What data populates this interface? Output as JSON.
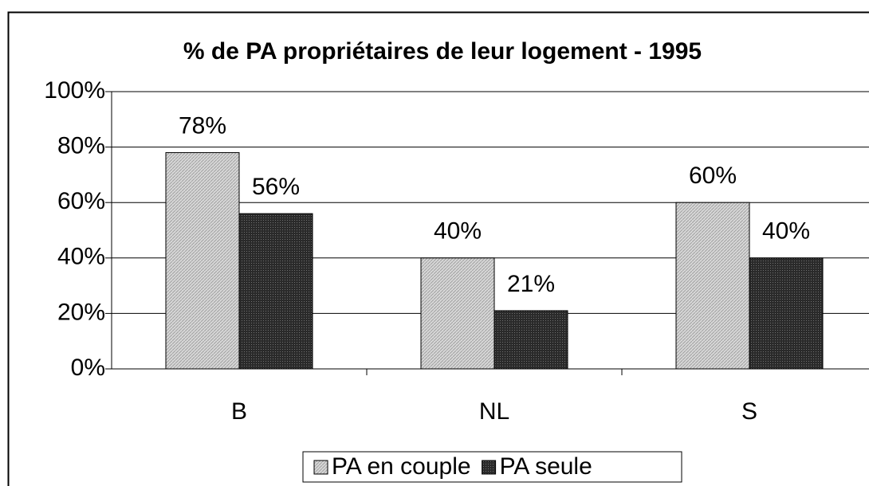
{
  "chart_data": {
    "type": "bar",
    "title": "% de PA propriétaires de leur logement - 1995",
    "categories": [
      "B",
      "NL",
      "S"
    ],
    "series": [
      {
        "name": "PA en couple",
        "color": "#c8c8c8",
        "values": [
          78,
          40,
          60
        ],
        "value_labels": [
          "78%",
          "40%",
          "60%"
        ]
      },
      {
        "name": "PA seule",
        "color": "#3c3c3c",
        "values": [
          56,
          21,
          40
        ],
        "value_labels": [
          "56%",
          "21%",
          "40%"
        ]
      }
    ],
    "ylim": [
      0,
      100
    ],
    "yticks": [
      {
        "value": 0,
        "label": "0%"
      },
      {
        "value": 20,
        "label": "20%"
      },
      {
        "value": 40,
        "label": "40%"
      },
      {
        "value": 60,
        "label": "60%"
      },
      {
        "value": 80,
        "label": "80%"
      },
      {
        "value": 100,
        "label": "100%"
      }
    ],
    "grid": true,
    "legend": "bottom"
  }
}
